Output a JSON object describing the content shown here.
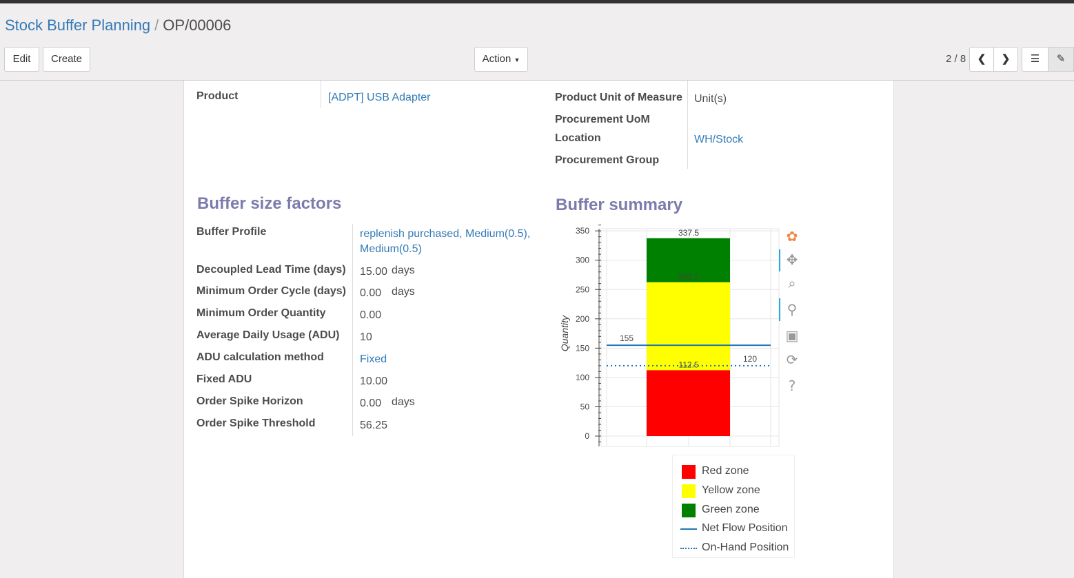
{
  "breadcrumb": {
    "parent": "Stock Buffer Planning",
    "current": "OP/00006"
  },
  "buttons": {
    "edit": "Edit",
    "create": "Create",
    "action": "Action",
    "pager": "2 / 8"
  },
  "fields_left": [
    {
      "label": "Product",
      "value": "[ADPT] USB Adapter"
    }
  ],
  "fields_right": [
    {
      "label": "Product Unit of Measure",
      "value": "Unit(s)"
    },
    {
      "label": "Procurement UoM",
      "value": ""
    },
    {
      "label": "Location",
      "value": "WH/Stock"
    },
    {
      "label": "Procurement Group",
      "value": ""
    }
  ],
  "buffer_size": {
    "title": "Buffer size factors",
    "rows": [
      {
        "label": "Buffer Profile",
        "value": "replenish purchased, Medium(0.5),",
        "value2": "Medium(0.5)"
      },
      {
        "label": "Decoupled Lead Time (days)",
        "value": "15.00",
        "unit": "days"
      },
      {
        "label": "Minimum Order Cycle (days)",
        "value": "0.00",
        "unit": "days"
      },
      {
        "label": "Minimum Order Quantity",
        "value": "0.00"
      },
      {
        "label": "Average Daily Usage (ADU)",
        "value": "10"
      },
      {
        "label": "ADU calculation method",
        "value": "Fixed"
      },
      {
        "label": "Fixed ADU",
        "value": "10.00"
      },
      {
        "label": "Order Spike Horizon",
        "value": "0.00",
        "unit": "days"
      },
      {
        "label": "Order Spike Threshold",
        "value": "56.25"
      }
    ]
  },
  "buffer_summary": {
    "title": "Buffer summary"
  },
  "chart_data": {
    "type": "bar",
    "stacked": true,
    "ylabel": "Quantity",
    "ylim": [
      -10,
      362
    ],
    "yticks": [
      0,
      50,
      100,
      150,
      200,
      250,
      300,
      350
    ],
    "grid": true,
    "zones": [
      {
        "name": "Red zone",
        "bottom": 0,
        "top": 112.5,
        "color": "#ff0000",
        "label": "112.5"
      },
      {
        "name": "Yellow zone",
        "bottom": 112.5,
        "top": 262.5,
        "color": "#ffff00",
        "label": "262.5"
      },
      {
        "name": "Green zone",
        "bottom": 262.5,
        "top": 337.5,
        "color": "#008000",
        "label": "337.5"
      }
    ],
    "lines": [
      {
        "name": "Net Flow Position",
        "value": 155,
        "label": "155",
        "style": "solid",
        "color": "#1f77b4"
      },
      {
        "name": "On-Hand Position",
        "value": 120,
        "label": "120",
        "style": "dotted",
        "color": "#1f77b4"
      }
    ],
    "legend_position": "bottom"
  },
  "toolbar_icons": [
    "bokeh-logo-icon",
    "pan-icon",
    "box-zoom-icon",
    "wheel-zoom-icon",
    "save-icon",
    "reset-icon",
    "help-icon"
  ]
}
